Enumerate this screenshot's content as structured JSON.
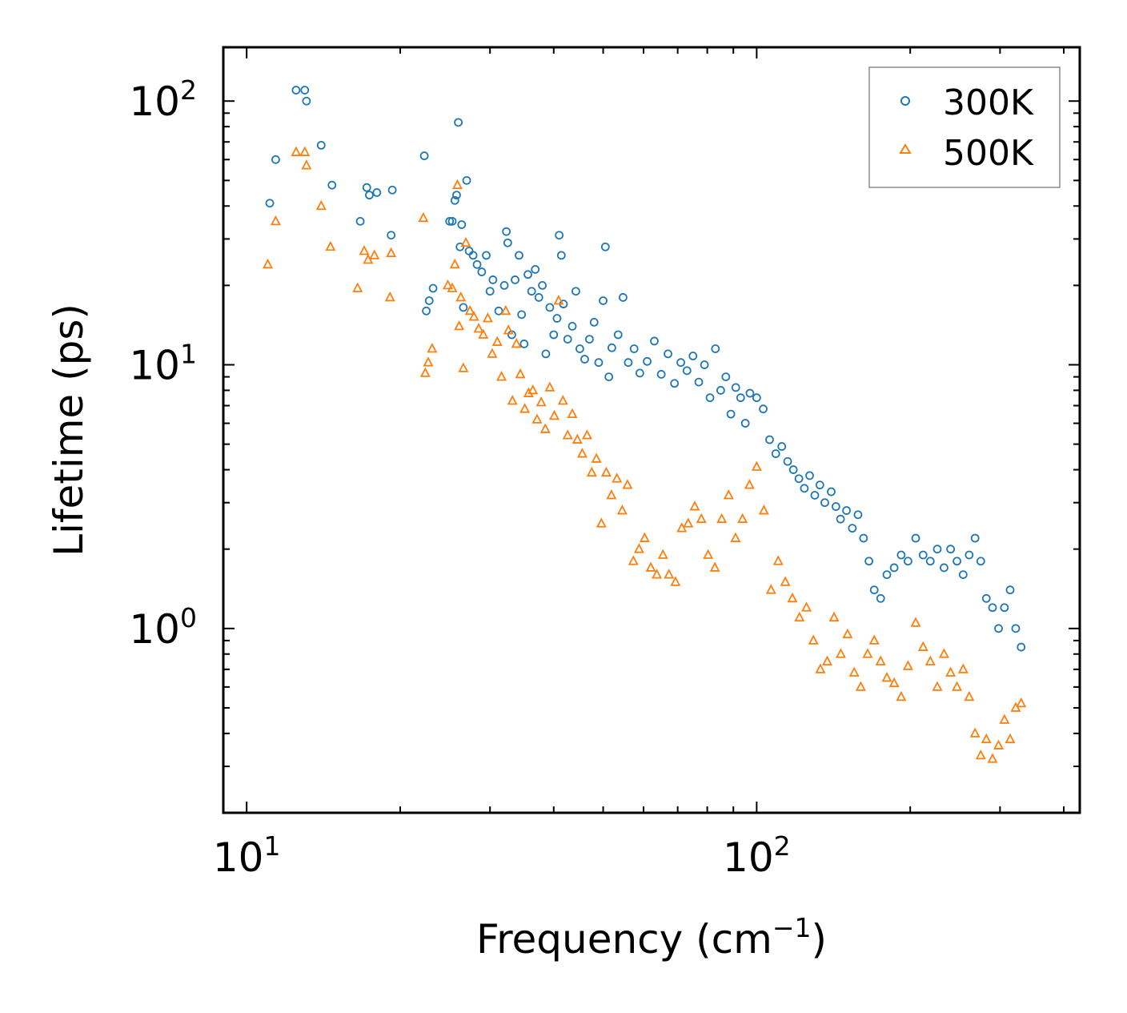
{
  "chart_data": {
    "type": "scatter",
    "title": "",
    "xlabel": "Frequency (cm",
    "xlabel_sup": "−1",
    "xlabel_tail": ")",
    "ylabel": "Lifetime (ps)",
    "xscale": "log",
    "yscale": "log",
    "xlim": [
      9.0,
      430
    ],
    "ylim": [
      0.2,
      160
    ],
    "x_ticks": [
      {
        "base": "10",
        "exp": "1",
        "value": 10
      },
      {
        "base": "10",
        "exp": "2",
        "value": 100
      }
    ],
    "y_ticks": [
      {
        "base": "10",
        "exp": "0",
        "value": 1
      },
      {
        "base": "10",
        "exp": "1",
        "value": 10
      },
      {
        "base": "10",
        "exp": "2",
        "value": 100
      }
    ],
    "legend_position": "top-right",
    "series": [
      {
        "name": "300K",
        "marker": "circle",
        "color": "#1f77b4",
        "points": [
          [
            11.1,
            41
          ],
          [
            11.4,
            60
          ],
          [
            12.5,
            110
          ],
          [
            13.0,
            110
          ],
          [
            13.1,
            100
          ],
          [
            14.0,
            68
          ],
          [
            14.7,
            48
          ],
          [
            16.7,
            35
          ],
          [
            17.2,
            47
          ],
          [
            17.4,
            44
          ],
          [
            18.0,
            45
          ],
          [
            19.2,
            31
          ],
          [
            19.3,
            46
          ],
          [
            22.3,
            62
          ],
          [
            22.5,
            16
          ],
          [
            22.8,
            17.5
          ],
          [
            23.2,
            19.5
          ],
          [
            25.0,
            35
          ],
          [
            25.3,
            35
          ],
          [
            25.6,
            42
          ],
          [
            25.8,
            44
          ],
          [
            26.0,
            83
          ],
          [
            26.2,
            28
          ],
          [
            26.4,
            34
          ],
          [
            26.6,
            16.5
          ],
          [
            27.0,
            50
          ],
          [
            27.3,
            27
          ],
          [
            27.8,
            26
          ],
          [
            28.3,
            24
          ],
          [
            28.9,
            22.5
          ],
          [
            29.5,
            26
          ],
          [
            30.0,
            19
          ],
          [
            30.4,
            21
          ],
          [
            31.2,
            16
          ],
          [
            32.0,
            20
          ],
          [
            32.3,
            32
          ],
          [
            32.5,
            29
          ],
          [
            33.1,
            13
          ],
          [
            33.6,
            21
          ],
          [
            34.2,
            26
          ],
          [
            34.6,
            15.5
          ],
          [
            35.0,
            12
          ],
          [
            35.6,
            22
          ],
          [
            36.2,
            19
          ],
          [
            36.8,
            23
          ],
          [
            37.4,
            18
          ],
          [
            38.0,
            20
          ],
          [
            38.6,
            11
          ],
          [
            39.3,
            16.5
          ],
          [
            40.0,
            13
          ],
          [
            40.6,
            15
          ],
          [
            41.0,
            31
          ],
          [
            41.4,
            26
          ],
          [
            41.8,
            17
          ],
          [
            42.6,
            12.5
          ],
          [
            43.5,
            14
          ],
          [
            44.2,
            19
          ],
          [
            45.0,
            11.5
          ],
          [
            46.0,
            10.5
          ],
          [
            47.0,
            12.5
          ],
          [
            48.0,
            14.5
          ],
          [
            49.0,
            10.2
          ],
          [
            50.0,
            17.5
          ],
          [
            50.5,
            28
          ],
          [
            51.3,
            9
          ],
          [
            52.0,
            11.6
          ],
          [
            53.5,
            13
          ],
          [
            54.7,
            18
          ],
          [
            56.0,
            10.2
          ],
          [
            57.5,
            11.5
          ],
          [
            59.0,
            9.3
          ],
          [
            61.0,
            10.3
          ],
          [
            63.0,
            12.3
          ],
          [
            65.0,
            9.2
          ],
          [
            67.0,
            11
          ],
          [
            69.0,
            8.5
          ],
          [
            71.0,
            10.2
          ],
          [
            73.0,
            9.5
          ],
          [
            75.0,
            10.8
          ],
          [
            77.0,
            8.6
          ],
          [
            79.0,
            10
          ],
          [
            81.0,
            7.5
          ],
          [
            83.0,
            11.5
          ],
          [
            85.0,
            8
          ],
          [
            87.0,
            9
          ],
          [
            89.0,
            6.5
          ],
          [
            91.0,
            8.2
          ],
          [
            93.0,
            7.5
          ],
          [
            95.0,
            6
          ],
          [
            97.0,
            7.8
          ],
          [
            100.0,
            7.5
          ],
          [
            103.0,
            6.8
          ],
          [
            106.0,
            5.2
          ],
          [
            109.0,
            4.6
          ],
          [
            112.0,
            4.9
          ],
          [
            115.0,
            4.3
          ],
          [
            118.0,
            4
          ],
          [
            121.0,
            3.7
          ],
          [
            124.0,
            3.4
          ],
          [
            127.0,
            3.8
          ],
          [
            130.0,
            3.2
          ],
          [
            133.0,
            3.5
          ],
          [
            136.0,
            3
          ],
          [
            140.0,
            3.3
          ],
          [
            143.0,
            2.9
          ],
          [
            146.0,
            2.6
          ],
          [
            150.0,
            2.8
          ],
          [
            154.0,
            2.4
          ],
          [
            158.0,
            2.7
          ],
          [
            162.0,
            2.2
          ],
          [
            166.0,
            1.8
          ],
          [
            170.0,
            1.4
          ],
          [
            175.0,
            1.3
          ],
          [
            180.0,
            1.6
          ],
          [
            186.0,
            1.7
          ],
          [
            192.0,
            1.9
          ],
          [
            198.0,
            1.8
          ],
          [
            205.0,
            2.2
          ],
          [
            212.0,
            1.9
          ],
          [
            219.0,
            1.8
          ],
          [
            226.0,
            2
          ],
          [
            233.0,
            1.7
          ],
          [
            240.0,
            2
          ],
          [
            247.0,
            1.8
          ],
          [
            254.0,
            1.6
          ],
          [
            261.0,
            1.9
          ],
          [
            268.0,
            2.2
          ],
          [
            275.0,
            1.8
          ],
          [
            282.0,
            1.3
          ],
          [
            290.0,
            1.2
          ],
          [
            298.0,
            1
          ],
          [
            306.0,
            1.2
          ],
          [
            314.0,
            1.4
          ],
          [
            322.0,
            1
          ],
          [
            330.0,
            0.85
          ]
        ]
      },
      {
        "name": "500K",
        "marker": "triangle",
        "color": "#ff7f0e",
        "points": [
          [
            11.0,
            24
          ],
          [
            11.4,
            35
          ],
          [
            12.5,
            64
          ],
          [
            13.0,
            64
          ],
          [
            13.1,
            57
          ],
          [
            14.0,
            40
          ],
          [
            14.6,
            28
          ],
          [
            16.5,
            19.5
          ],
          [
            17.0,
            27
          ],
          [
            17.3,
            25
          ],
          [
            17.8,
            26
          ],
          [
            19.1,
            18
          ],
          [
            19.2,
            26.5
          ],
          [
            22.2,
            36
          ],
          [
            22.4,
            9.3
          ],
          [
            22.7,
            10.2
          ],
          [
            23.1,
            11.5
          ],
          [
            24.8,
            20
          ],
          [
            25.3,
            19.5
          ],
          [
            25.6,
            24
          ],
          [
            25.9,
            48
          ],
          [
            26.1,
            14
          ],
          [
            26.3,
            18
          ],
          [
            26.6,
            9.7
          ],
          [
            26.9,
            29
          ],
          [
            27.4,
            16
          ],
          [
            27.9,
            15.2
          ],
          [
            28.5,
            13.7
          ],
          [
            29.1,
            13
          ],
          [
            29.7,
            15
          ],
          [
            30.3,
            11
          ],
          [
            31.0,
            12.2
          ],
          [
            31.6,
            9
          ],
          [
            32.2,
            16
          ],
          [
            32.6,
            13.5
          ],
          [
            33.2,
            7.3
          ],
          [
            33.8,
            12
          ],
          [
            34.4,
            9.2
          ],
          [
            35.1,
            6.8
          ],
          [
            35.7,
            7.8
          ],
          [
            36.4,
            8
          ],
          [
            37.1,
            6.2
          ],
          [
            37.8,
            7.2
          ],
          [
            38.5,
            5.7
          ],
          [
            39.3,
            8.2
          ],
          [
            40.1,
            6.4
          ],
          [
            40.9,
            17.5
          ],
          [
            41.7,
            7.3
          ],
          [
            42.6,
            5.4
          ],
          [
            43.5,
            6.5
          ],
          [
            44.5,
            5.2
          ],
          [
            45.5,
            4.6
          ],
          [
            46.5,
            5.4
          ],
          [
            47.5,
            3.9
          ],
          [
            48.5,
            4.4
          ],
          [
            49.6,
            2.5
          ],
          [
            50.7,
            3.9
          ],
          [
            51.9,
            3.2
          ],
          [
            53.2,
            3.7
          ],
          [
            54.5,
            2.8
          ],
          [
            55.8,
            3.5
          ],
          [
            57.3,
            1.8
          ],
          [
            58.8,
            2
          ],
          [
            60.3,
            2.2
          ],
          [
            62.0,
            1.7
          ],
          [
            63.7,
            1.6
          ],
          [
            65.5,
            1.9
          ],
          [
            67.3,
            1.6
          ],
          [
            69.3,
            1.5
          ],
          [
            71.3,
            2.4
          ],
          [
            73.4,
            2.5
          ],
          [
            75.6,
            2.9
          ],
          [
            77.9,
            2.6
          ],
          [
            80.3,
            1.9
          ],
          [
            82.8,
            1.7
          ],
          [
            85.4,
            2.6
          ],
          [
            88.1,
            3.2
          ],
          [
            90.9,
            2.2
          ],
          [
            93.8,
            2.6
          ],
          [
            96.8,
            3.5
          ],
          [
            100.0,
            4.1
          ],
          [
            103.3,
            2.8
          ],
          [
            106.7,
            1.4
          ],
          [
            110.2,
            1.8
          ],
          [
            113.8,
            1.5
          ],
          [
            117.5,
            1.3
          ],
          [
            121.3,
            1.1
          ],
          [
            125.2,
            1.2
          ],
          [
            129.2,
            0.9
          ],
          [
            133.3,
            0.7
          ],
          [
            137.5,
            0.75
          ],
          [
            141.8,
            1.1
          ],
          [
            146.2,
            0.8
          ],
          [
            150.7,
            0.95
          ],
          [
            155.3,
            0.68
          ],
          [
            160.0,
            0.6
          ],
          [
            165.0,
            0.8
          ],
          [
            170.0,
            0.9
          ],
          [
            175.0,
            0.75
          ],
          [
            180.0,
            0.65
          ],
          [
            186.0,
            0.62
          ],
          [
            192.0,
            0.55
          ],
          [
            198.0,
            0.72
          ],
          [
            205.0,
            1.05
          ],
          [
            212.0,
            0.85
          ],
          [
            219.0,
            0.75
          ],
          [
            226.0,
            0.6
          ],
          [
            233.0,
            0.8
          ],
          [
            240.0,
            0.68
          ],
          [
            247.0,
            0.6
          ],
          [
            254.0,
            0.7
          ],
          [
            261.0,
            0.55
          ],
          [
            268.0,
            0.4
          ],
          [
            275.0,
            0.33
          ],
          [
            282.0,
            0.38
          ],
          [
            290.0,
            0.32
          ],
          [
            298.0,
            0.36
          ],
          [
            306.0,
            0.45
          ],
          [
            314.0,
            0.38
          ],
          [
            322.0,
            0.5
          ],
          [
            330.0,
            0.52
          ]
        ]
      }
    ]
  }
}
